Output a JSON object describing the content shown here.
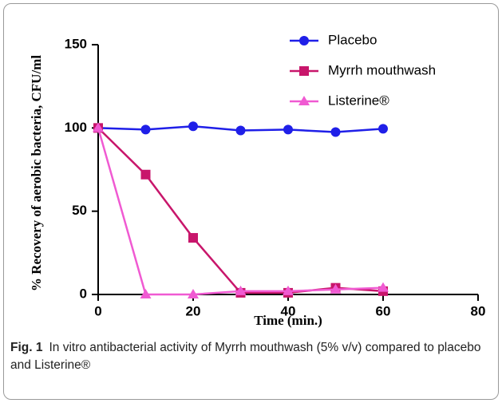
{
  "chart_data": {
    "type": "line",
    "x": [
      0,
      10,
      20,
      30,
      40,
      50,
      60
    ],
    "series": [
      {
        "name": "Placebo",
        "color": "#1f1fe8",
        "marker": "circle",
        "values": [
          100,
          99,
          101,
          98.5,
          99,
          97.5,
          99.5
        ]
      },
      {
        "name": "Myrrh mouthwash",
        "color": "#c8166b",
        "marker": "square",
        "values": [
          100,
          72,
          34,
          1,
          1,
          4,
          2
        ]
      },
      {
        "name": "Listerine®",
        "color": "#f05ad2",
        "marker": "triangle",
        "values": [
          100,
          0,
          0,
          2,
          2,
          3,
          4
        ]
      }
    ],
    "xlabel": "Time (min.)",
    "ylabel": "% Recovery of aerobic bacteria, CFU/ml",
    "xlim": [
      0,
      80
    ],
    "xticks": [
      0,
      20,
      40,
      60,
      80
    ],
    "ylim": [
      0,
      150
    ],
    "yticks": [
      0,
      50,
      100,
      150
    ],
    "legend": "upper right",
    "caption_label": "Fig. 1",
    "caption": "In vitro antibacterial activity of Myrrh mouthwash (5% v/v) compared to placebo and Listerine®"
  }
}
